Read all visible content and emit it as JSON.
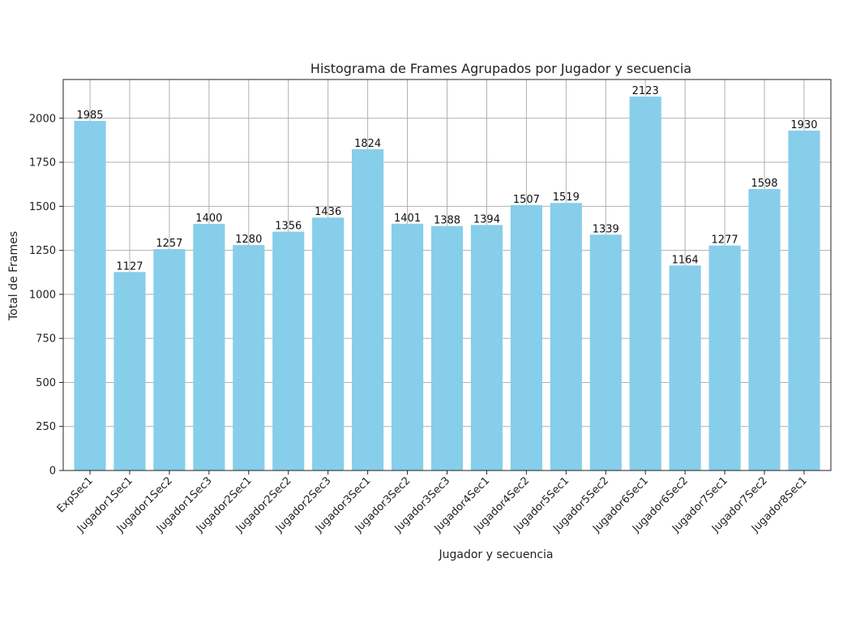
{
  "chart_data": {
    "type": "bar",
    "title": "Histograma de Frames Agrupados por Jugador y secuencia",
    "xlabel": "Jugador y secuencia",
    "ylabel": "Total de Frames",
    "categories": [
      "ExpSec1",
      "Jugador1Sec1",
      "Jugador1Sec2",
      "Jugador1Sec3",
      "Jugador2Sec1",
      "Jugador2Sec2",
      "Jugador2Sec3",
      "Jugador3Sec1",
      "Jugador3Sec2",
      "Jugador3Sec3",
      "Jugador4Sec1",
      "Jugador4Sec2",
      "Jugador5Sec1",
      "Jugador5Sec2",
      "Jugador6Sec1",
      "Jugador6Sec2",
      "Jugador7Sec1",
      "Jugador7Sec2",
      "Jugador8Sec1"
    ],
    "values": [
      1985,
      1127,
      1257,
      1400,
      1280,
      1356,
      1436,
      1824,
      1401,
      1388,
      1394,
      1507,
      1519,
      1339,
      2123,
      1164,
      1277,
      1598,
      1930
    ],
    "ylim": [
      0,
      2220
    ],
    "yticks": [
      0,
      250,
      500,
      750,
      1000,
      1250,
      1500,
      1750,
      2000
    ],
    "grid": true,
    "bar_color": "#87CEEB",
    "grid_color": "#b0b0b0"
  }
}
